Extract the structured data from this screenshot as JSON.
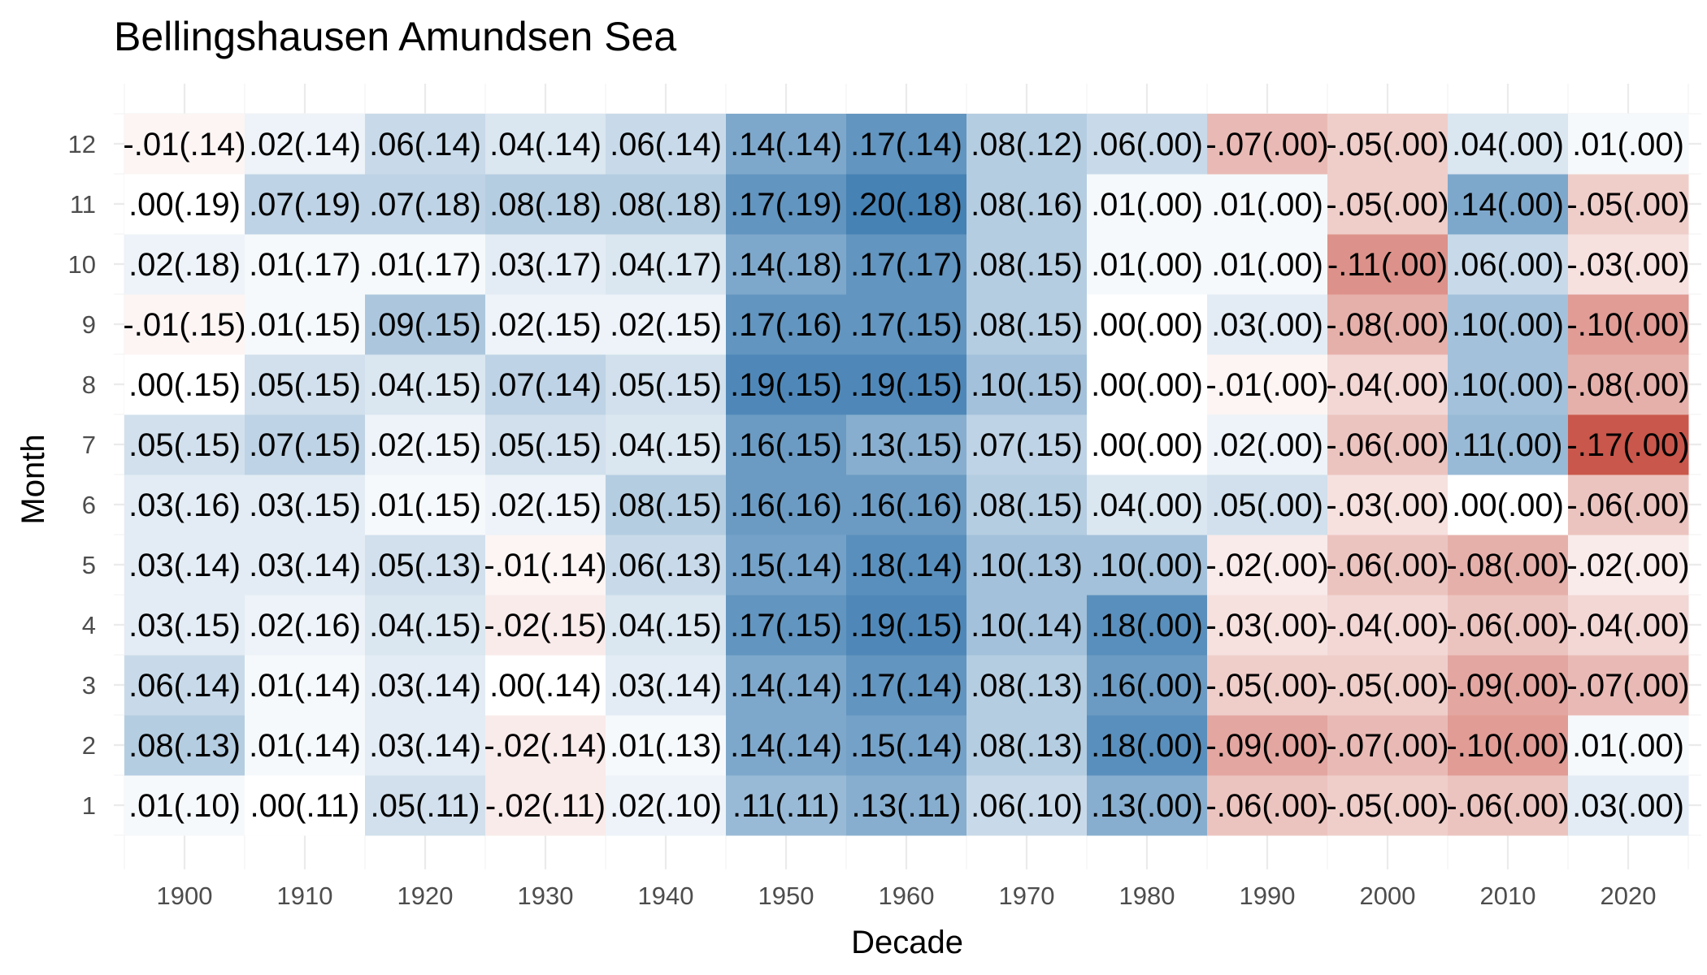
{
  "chart_data": {
    "type": "heatmap",
    "title": "Bellingshausen Amundsen Sea",
    "xlabel": "Decade",
    "ylabel": "Month",
    "x": [
      1900,
      1910,
      1920,
      1930,
      1940,
      1950,
      1960,
      1970,
      1980,
      1990,
      2000,
      2010,
      2020
    ],
    "y": [
      1,
      2,
      3,
      4,
      5,
      6,
      7,
      8,
      9,
      10,
      11,
      12
    ],
    "grid": true,
    "color_scale": {
      "negative": "#c0392b",
      "zero": "#ffffff",
      "positive": "#4682b4",
      "limit": 0.2
    },
    "values": [
      [
        0.01,
        0.08,
        0.06,
        0.03,
        0.03,
        0.03,
        0.05,
        0.0,
        -0.01,
        0.02,
        0.0,
        -0.01
      ],
      [
        0.0,
        0.01,
        0.01,
        0.02,
        0.03,
        0.03,
        0.07,
        0.05,
        0.01,
        0.01,
        0.07,
        0.02
      ],
      [
        0.05,
        0.03,
        0.03,
        0.04,
        0.05,
        0.01,
        0.02,
        0.04,
        0.09,
        0.01,
        0.07,
        0.06
      ],
      [
        -0.02,
        -0.02,
        0.0,
        -0.02,
        -0.01,
        0.02,
        0.05,
        0.07,
        0.02,
        0.03,
        0.08,
        0.04
      ],
      [
        0.02,
        0.01,
        0.03,
        0.04,
        0.06,
        0.08,
        0.04,
        0.05,
        0.02,
        0.04,
        0.08,
        0.06
      ],
      [
        0.11,
        0.14,
        0.14,
        0.17,
        0.15,
        0.16,
        0.16,
        0.19,
        0.17,
        0.14,
        0.17,
        0.14
      ],
      [
        0.13,
        0.15,
        0.17,
        0.19,
        0.18,
        0.16,
        0.13,
        0.19,
        0.17,
        0.17,
        0.2,
        0.17
      ],
      [
        0.06,
        0.08,
        0.08,
        0.1,
        0.1,
        0.08,
        0.07,
        0.1,
        0.08,
        0.08,
        0.08,
        0.08
      ],
      [
        0.13,
        0.18,
        0.16,
        0.18,
        0.1,
        0.04,
        0.0,
        0.0,
        0.0,
        0.01,
        0.01,
        0.06
      ],
      [
        -0.06,
        -0.09,
        -0.05,
        -0.03,
        -0.02,
        0.05,
        0.02,
        -0.01,
        0.03,
        0.01,
        0.01,
        -0.07
      ],
      [
        -0.05,
        -0.07,
        -0.05,
        -0.04,
        -0.06,
        -0.03,
        -0.06,
        -0.04,
        -0.08,
        -0.11,
        -0.05,
        -0.05
      ],
      [
        -0.06,
        -0.1,
        -0.09,
        -0.06,
        -0.08,
        0.0,
        0.11,
        0.1,
        0.1,
        0.06,
        0.14,
        0.04
      ],
      [
        0.03,
        0.01,
        -0.07,
        -0.04,
        -0.02,
        -0.06,
        -0.17,
        -0.08,
        -0.1,
        -0.03,
        -0.05,
        0.01
      ]
    ],
    "labels": [
      [
        ".01(.10)",
        ".08(.13)",
        ".06(.14)",
        ".03(.15)",
        ".03(.14)",
        ".03(.16)",
        ".05(.15)",
        ".00(.15)",
        "-.01(.15)",
        ".02(.18)",
        ".00(.19)",
        "-.01(.14)"
      ],
      [
        ".00(.11)",
        ".01(.14)",
        ".01(.14)",
        ".02(.16)",
        ".03(.14)",
        ".03(.15)",
        ".07(.15)",
        ".05(.15)",
        ".01(.15)",
        ".01(.17)",
        ".07(.19)",
        ".02(.14)"
      ],
      [
        ".05(.11)",
        ".03(.14)",
        ".03(.14)",
        ".04(.15)",
        ".05(.13)",
        ".01(.15)",
        ".02(.15)",
        ".04(.15)",
        ".09(.15)",
        ".01(.17)",
        ".07(.18)",
        ".06(.14)"
      ],
      [
        "-.02(.11)",
        "-.02(.14)",
        ".00(.14)",
        "-.02(.15)",
        "-.01(.14)",
        ".02(.15)",
        ".05(.15)",
        ".07(.14)",
        ".02(.15)",
        ".03(.17)",
        ".08(.18)",
        ".04(.14)"
      ],
      [
        ".02(.10)",
        ".01(.13)",
        ".03(.14)",
        ".04(.15)",
        ".06(.13)",
        ".08(.15)",
        ".04(.15)",
        ".05(.15)",
        ".02(.15)",
        ".04(.17)",
        ".08(.18)",
        ".06(.14)"
      ],
      [
        ".11(.11)",
        ".14(.14)",
        ".14(.14)",
        ".17(.15)",
        ".15(.14)",
        ".16(.16)",
        ".16(.15)",
        ".19(.15)",
        ".17(.16)",
        ".14(.18)",
        ".17(.19)",
        ".14(.14)"
      ],
      [
        ".13(.11)",
        ".15(.14)",
        ".17(.14)",
        ".19(.15)",
        ".18(.14)",
        ".16(.16)",
        ".13(.15)",
        ".19(.15)",
        ".17(.15)",
        ".17(.17)",
        ".20(.18)",
        ".17(.14)"
      ],
      [
        ".06(.10)",
        ".08(.13)",
        ".08(.13)",
        ".10(.14)",
        ".10(.13)",
        ".08(.15)",
        ".07(.15)",
        ".10(.15)",
        ".08(.15)",
        ".08(.15)",
        ".08(.16)",
        ".08(.12)"
      ],
      [
        ".13(.00)",
        ".18(.00)",
        ".16(.00)",
        ".18(.00)",
        ".10(.00)",
        ".04(.00)",
        ".00(.00)",
        ".00(.00)",
        ".00(.00)",
        ".01(.00)",
        ".01(.00)",
        ".06(.00)"
      ],
      [
        "-.06(.00)",
        "-.09(.00)",
        "-.05(.00)",
        "-.03(.00)",
        "-.02(.00)",
        ".05(.00)",
        ".02(.00)",
        "-.01(.00)",
        ".03(.00)",
        ".01(.00)",
        ".01(.00)",
        "-.07(.00)"
      ],
      [
        "-.05(.00)",
        "-.07(.00)",
        "-.05(.00)",
        "-.04(.00)",
        "-.06(.00)",
        "-.03(.00)",
        "-.06(.00)",
        "-.04(.00)",
        "-.08(.00)",
        "-.11(.00)",
        "-.05(.00)",
        "-.05(.00)"
      ],
      [
        "-.06(.00)",
        "-.10(.00)",
        "-.09(.00)",
        "-.06(.00)",
        "-.08(.00)",
        ".00(.00)",
        ".11(.00)",
        ".10(.00)",
        ".10(.00)",
        ".06(.00)",
        ".14(.00)",
        ".04(.00)"
      ],
      [
        ".03(.00)",
        ".01(.00)",
        "-.07(.00)",
        "-.04(.00)",
        "-.02(.00)",
        "-.06(.00)",
        "-.17(.00)",
        "-.08(.00)",
        "-.10(.00)",
        "-.03(.00)",
        "-.05(.00)",
        ".01(.00)"
      ]
    ]
  }
}
